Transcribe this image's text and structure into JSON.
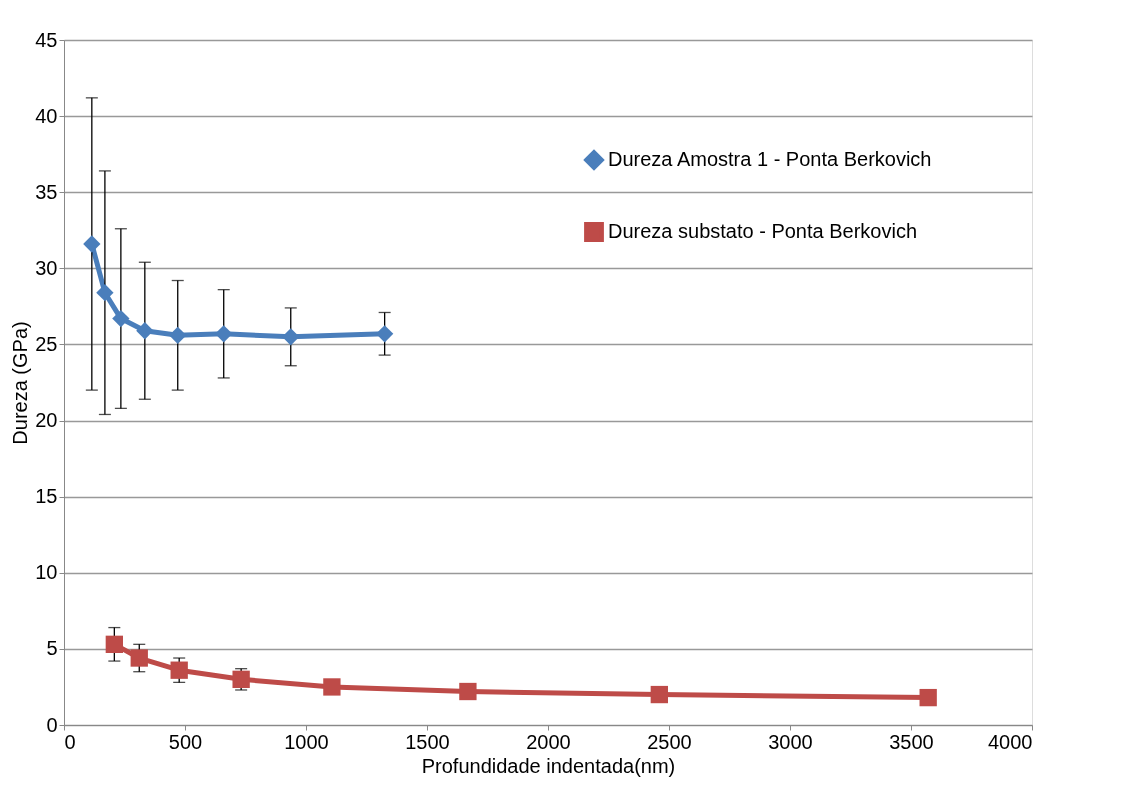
{
  "chart_data": {
    "type": "line",
    "xlabel": "Profundidade indentada(nm)",
    "ylabel": "Dureza (GPa)",
    "xlim": [
      0,
      4000
    ],
    "xticks": [
      0,
      500,
      1000,
      1500,
      2000,
      2500,
      3000,
      3500,
      4000
    ],
    "ylim": [
      0,
      45
    ],
    "yticks": [
      0,
      5,
      10,
      15,
      20,
      25,
      30,
      35,
      40,
      45
    ],
    "grid": "y",
    "legend": "top right",
    "line_style": "solid",
    "series": [
      {
        "name": "Dureza Amostra 1 - Ponta Berkovich",
        "color": "#4a7ebb",
        "marker": "diamond",
        "x": [
          115,
          169,
          235,
          334,
          470,
          660,
          937,
          1325
        ],
        "values": [
          31.6,
          28.4,
          26.7,
          25.9,
          25.6,
          25.7,
          25.5,
          25.7
        ],
        "errors": [
          [
            22.0,
            41.2
          ],
          [
            20.4,
            36.4
          ],
          [
            20.8,
            32.6
          ],
          [
            21.4,
            30.4
          ],
          [
            22.0,
            29.2
          ],
          [
            22.8,
            28.6
          ],
          [
            23.6,
            27.4
          ],
          [
            24.3,
            27.1
          ]
        ]
      },
      {
        "name": "Dureza substato - Ponta Berkovich",
        "color": "#be4b48",
        "marker": "square",
        "x": [
          208,
          311,
          476,
          732,
          1107,
          1669,
          2460,
          3571
        ],
        "values": [
          5.3,
          4.4,
          3.6,
          3.0,
          2.5,
          2.2,
          2.0,
          1.8
        ],
        "errors": [
          [
            4.2,
            6.4
          ],
          [
            3.5,
            5.3
          ],
          [
            2.8,
            4.4
          ],
          [
            2.3,
            3.7
          ],
          null,
          null,
          null,
          null
        ]
      }
    ]
  }
}
